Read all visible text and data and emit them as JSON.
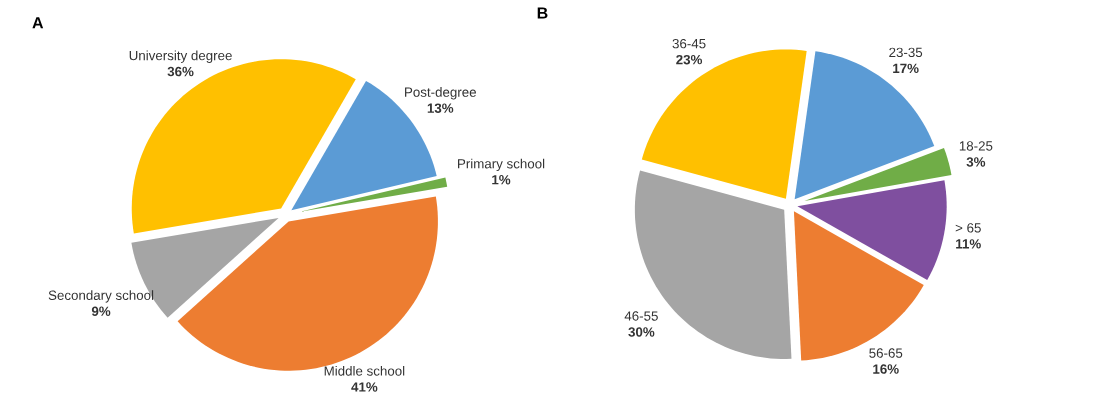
{
  "chart_data": [
    {
      "type": "pie",
      "title": "A",
      "categories": [
        "Post-degree",
        "Primary school",
        "Middle school",
        "Secondary school",
        "University degree"
      ],
      "values": [
        13,
        1,
        41,
        9,
        36
      ],
      "colors": [
        "#5b9bd5",
        "#70ad47",
        "#ed7d31",
        "#a5a5a5",
        "#ffc000"
      ],
      "value_labels": [
        "13%",
        "1%",
        "41%",
        "9%",
        "36%"
      ]
    },
    {
      "type": "pie",
      "title": "B",
      "categories": [
        "23-35",
        "18-25",
        "> 65",
        "56-65",
        "46-55",
        "36-45"
      ],
      "values": [
        17,
        3,
        11,
        16,
        30,
        23
      ],
      "colors": [
        "#5b9bd5",
        "#70ad47",
        "#7f4f9f",
        "#ed7d31",
        "#a5a5a5",
        "#ffc000"
      ],
      "value_labels": [
        "17%",
        "3%",
        "11%",
        "16%",
        "30%",
        "23%"
      ]
    }
  ]
}
